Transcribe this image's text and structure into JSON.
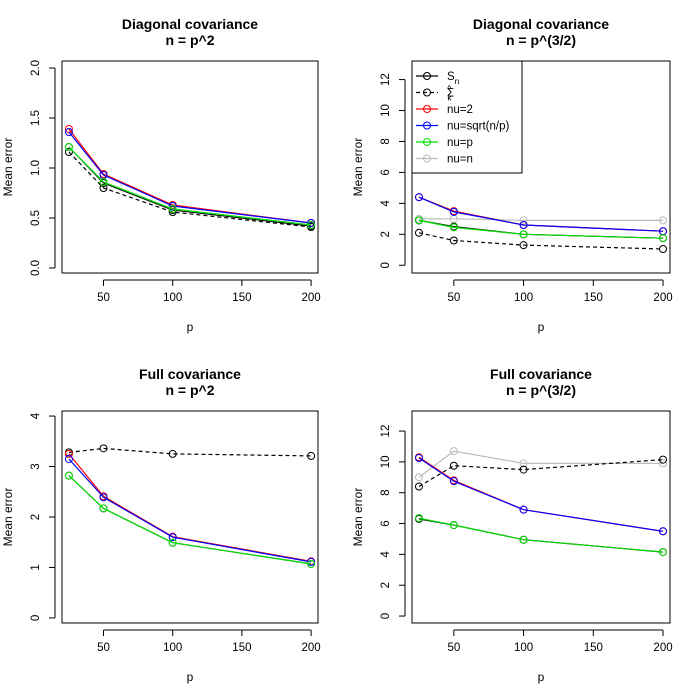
{
  "figure": {
    "legend": {
      "entries": [
        {
          "label": "S",
          "sub": "n",
          "sup": "",
          "color": "#000000",
          "dash": false
        },
        {
          "label": "Σ",
          "sub": "k",
          "sup": "^",
          "color": "#000000",
          "dash": true
        },
        {
          "label": "nu=2",
          "sub": "",
          "sup": "",
          "color": "#ff0000",
          "dash": false
        },
        {
          "label": "nu=sqrt(n/p)",
          "sub": "",
          "sup": "",
          "color": "#0000ff",
          "dash": false
        },
        {
          "label": "nu=p",
          "sub": "",
          "sup": "",
          "color": "#00dd00",
          "dash": false
        },
        {
          "label": "nu=n",
          "sub": "",
          "sup": "",
          "color": "#bbbbbb",
          "dash": false
        }
      ]
    }
  },
  "chart_data": [
    {
      "type": "line",
      "title": "Diagonal covariance",
      "subtitle": "n = p^2",
      "xlabel": "p",
      "ylabel": "Mean error",
      "x": [
        25,
        50,
        100,
        200
      ],
      "xlim": [
        20,
        205
      ],
      "xticks": [
        50,
        100,
        150,
        200
      ],
      "ylim": [
        -0.05,
        2.07
      ],
      "yticks": [
        "0.0",
        "0.5",
        "1.0",
        "1.5",
        "2.0"
      ],
      "legend": false,
      "series": [
        {
          "name": "S_n",
          "color": "#000000",
          "dash": false,
          "values": [
            1.21,
            0.85,
            0.58,
            0.42
          ]
        },
        {
          "name": "Sigma_hat_k",
          "color": "#000000",
          "dash": true,
          "values": [
            1.16,
            0.8,
            0.56,
            0.41
          ]
        },
        {
          "name": "nu=2",
          "color": "#ff0000",
          "dash": false,
          "values": [
            1.39,
            0.94,
            0.63,
            0.45
          ]
        },
        {
          "name": "nu=sqrt(n/p)",
          "color": "#0000ff",
          "dash": false,
          "values": [
            1.36,
            0.93,
            0.62,
            0.45
          ]
        },
        {
          "name": "nu=n",
          "color": "#bbbbbb",
          "dash": false,
          "values": [
            1.21,
            0.86,
            0.59,
            0.43
          ]
        },
        {
          "name": "nu=p",
          "color": "#00dd00",
          "dash": false,
          "values": [
            1.21,
            0.86,
            0.59,
            0.43
          ]
        }
      ]
    },
    {
      "type": "line",
      "title": "Diagonal covariance",
      "subtitle": "n = p^(3/2)",
      "xlabel": "p",
      "ylabel": "Mean error",
      "x": [
        25,
        50,
        100,
        200
      ],
      "xlim": [
        20,
        205
      ],
      "xticks": [
        50,
        100,
        150,
        200
      ],
      "ylim": [
        -0.5,
        13.2
      ],
      "yticks": [
        "0",
        "2",
        "4",
        "6",
        "8",
        "10",
        "12"
      ],
      "legend": true,
      "series": [
        {
          "name": "nu=n",
          "color": "#bbbbbb",
          "dash": false,
          "values": [
            3.0,
            3.0,
            2.9,
            2.9
          ]
        },
        {
          "name": "S_n",
          "color": "#000000",
          "dash": false,
          "values": [
            2.9,
            2.5,
            2.0,
            1.75
          ]
        },
        {
          "name": "Sigma_hat_k",
          "color": "#000000",
          "dash": true,
          "values": [
            2.1,
            1.6,
            1.3,
            1.05
          ]
        },
        {
          "name": "nu=2",
          "color": "#ff0000",
          "dash": false,
          "values": [
            4.4,
            3.5,
            2.6,
            2.2
          ]
        },
        {
          "name": "nu=sqrt(n/p)",
          "color": "#0000ff",
          "dash": false,
          "values": [
            4.4,
            3.45,
            2.6,
            2.2
          ]
        },
        {
          "name": "nu=p",
          "color": "#00dd00",
          "dash": false,
          "values": [
            2.9,
            2.45,
            2.0,
            1.75
          ]
        }
      ]
    },
    {
      "type": "line",
      "title": "Full covariance",
      "subtitle": "n = p^2",
      "xlabel": "p",
      "ylabel": "Mean error",
      "x": [
        25,
        50,
        100,
        200
      ],
      "xlim": [
        20,
        205
      ],
      "xticks": [
        50,
        100,
        150,
        200
      ],
      "ylim": [
        -0.1,
        4.1
      ],
      "yticks": [
        "0",
        "1",
        "2",
        "3",
        "4"
      ],
      "legend": false,
      "series": [
        {
          "name": "Sigma_hat_k",
          "color": "#000000",
          "dash": true,
          "values": [
            3.28,
            3.36,
            3.25,
            3.21
          ]
        },
        {
          "name": "S_n",
          "color": "#000000",
          "dash": false,
          "values": [
            2.82,
            2.17,
            1.49,
            1.07
          ]
        },
        {
          "name": "nu=2",
          "color": "#ff0000",
          "dash": false,
          "values": [
            3.25,
            2.41,
            1.61,
            1.12
          ]
        },
        {
          "name": "nu=sqrt(n/p)",
          "color": "#0000ff",
          "dash": false,
          "values": [
            3.15,
            2.39,
            1.6,
            1.11
          ]
        },
        {
          "name": "nu=n",
          "color": "#bbbbbb",
          "dash": false,
          "values": [
            2.82,
            2.17,
            1.49,
            1.07
          ]
        },
        {
          "name": "nu=p",
          "color": "#00dd00",
          "dash": false,
          "values": [
            2.82,
            2.17,
            1.49,
            1.07
          ]
        }
      ]
    },
    {
      "type": "line",
      "title": "Full covariance",
      "subtitle": "n = p^(3/2)",
      "xlabel": "p",
      "ylabel": "Mean error",
      "x": [
        25,
        50,
        100,
        200
      ],
      "xlim": [
        20,
        205
      ],
      "xticks": [
        50,
        100,
        150,
        200
      ],
      "ylim": [
        -0.45,
        13.3
      ],
      "yticks": [
        "0",
        "2",
        "4",
        "6",
        "8",
        "10",
        "12"
      ],
      "legend": false,
      "series": [
        {
          "name": "nu=n",
          "color": "#bbbbbb",
          "dash": false,
          "values": [
            9.0,
            10.7,
            9.9,
            9.9
          ]
        },
        {
          "name": "Sigma_hat_k",
          "color": "#000000",
          "dash": true,
          "values": [
            8.4,
            9.75,
            9.5,
            10.15
          ]
        },
        {
          "name": "S_n",
          "color": "#000000",
          "dash": false,
          "values": [
            6.3,
            5.9,
            4.95,
            4.15
          ]
        },
        {
          "name": "nu=2",
          "color": "#ff0000",
          "dash": false,
          "values": [
            10.3,
            8.8,
            6.9,
            5.5
          ]
        },
        {
          "name": "nu=sqrt(n/p)",
          "color": "#0000ff",
          "dash": false,
          "values": [
            10.25,
            8.75,
            6.9,
            5.5
          ]
        },
        {
          "name": "nu=p",
          "color": "#00dd00",
          "dash": false,
          "values": [
            6.35,
            5.9,
            4.95,
            4.15
          ]
        }
      ]
    }
  ]
}
